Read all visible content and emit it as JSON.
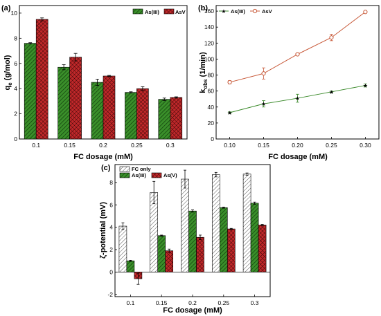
{
  "chart_data": [
    {
      "panel": "(a)",
      "type": "bar",
      "xlabel": "FC dosage (mM)",
      "ylabel": "qe (g/mol)",
      "ylabel_main": "q",
      "ylabel_sub": "e",
      "ylabel_unit": " (g/mol)",
      "categories": [
        "0.1",
        "0.15",
        "0.2",
        "0.25",
        "0.3"
      ],
      "ylim": [
        0,
        10.6
      ],
      "yticks": [
        0,
        2,
        4,
        6,
        8,
        10
      ],
      "legend_position": "top-right",
      "series": [
        {
          "name": "As(III)",
          "values": [
            7.6,
            5.7,
            4.5,
            3.7,
            3.15
          ],
          "errors": [
            0.05,
            0.2,
            0.25,
            0.05,
            0.1
          ],
          "color": "#3a8f2a",
          "pattern": "hatch-green"
        },
        {
          "name": "AsV",
          "values": [
            9.5,
            6.5,
            5.0,
            4.0,
            3.3
          ],
          "errors": [
            0.12,
            0.3,
            0.05,
            0.15,
            0.05
          ],
          "color": "#c0282a",
          "pattern": "cross-red"
        }
      ]
    },
    {
      "panel": "(b)",
      "type": "line",
      "xlabel": "FC dosage (mM)",
      "ylabel": "kobs (1/min)",
      "ylabel_main": "k",
      "ylabel_sub": "obs",
      "ylabel_unit": " (1/min)",
      "x": [
        0.1,
        0.15,
        0.2,
        0.25,
        0.3
      ],
      "xticks": [
        "0.10",
        "0.15",
        "0.20",
        "0.25",
        "0.30"
      ],
      "xlim": [
        0.08,
        0.32
      ],
      "ylim": [
        0,
        167
      ],
      "yticks": [
        0,
        20,
        40,
        60,
        80,
        100,
        120,
        140,
        160
      ],
      "legend_position": "top-left",
      "series": [
        {
          "name": "As(III)",
          "values": [
            33,
            44,
            51,
            59,
            67
          ],
          "errors": [
            1,
            4,
            5,
            1,
            2
          ],
          "color": "#3a8a2a",
          "marker": "star"
        },
        {
          "name": "AsV",
          "values": [
            71,
            82,
            106,
            127,
            159
          ],
          "errors": [
            2,
            7,
            1,
            4,
            1
          ],
          "color": "#c85a3a",
          "marker": "circle"
        }
      ]
    },
    {
      "panel": "(c)",
      "type": "bar",
      "xlabel": "FC dosage (mM)",
      "ylabel": "ζ-potential (mV)",
      "categories": [
        "0.1",
        "0.15",
        "0.2",
        "0.25",
        "0.3"
      ],
      "ylim": [
        -2.2,
        9.6
      ],
      "yticks": [
        -2,
        0,
        2,
        4,
        6,
        8
      ],
      "legend_position": "top-left",
      "series": [
        {
          "name": "FC only",
          "values": [
            4.1,
            7.1,
            8.3,
            8.7,
            8.75
          ],
          "errors": [
            0.3,
            1.0,
            0.8,
            0.2,
            0.1
          ],
          "color": "#ffffff",
          "pattern": "hatch-white"
        },
        {
          "name": "As(III)",
          "values": [
            1.0,
            3.25,
            5.45,
            5.75,
            6.15
          ],
          "errors": [
            0.05,
            0.05,
            0.1,
            0.05,
            0.1
          ],
          "color": "#3a8f2a",
          "pattern": "hatch-green"
        },
        {
          "name": "As(V)",
          "values": [
            -0.6,
            1.9,
            3.1,
            3.85,
            4.2
          ],
          "errors": [
            0.5,
            0.15,
            0.2,
            0.05,
            0.05
          ],
          "color": "#c0282a",
          "pattern": "cross-red"
        }
      ]
    }
  ]
}
